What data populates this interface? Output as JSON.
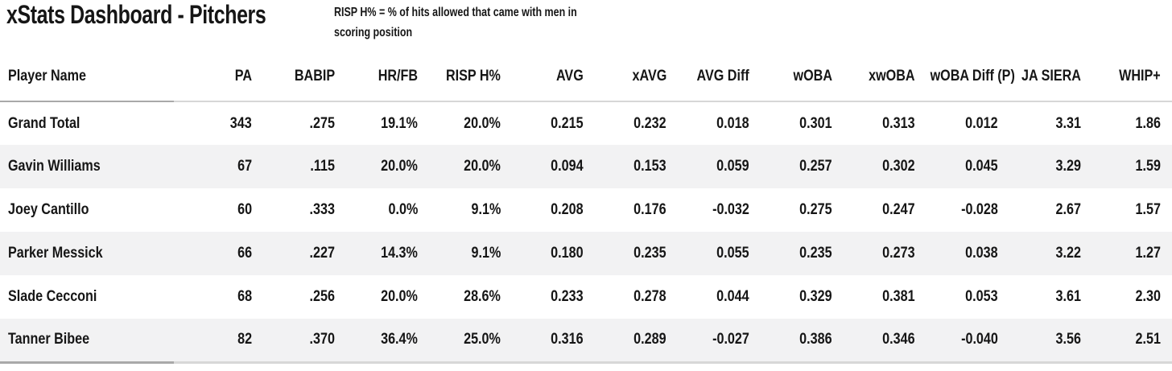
{
  "header": {
    "title": "xStats Dashboard - Pitchers",
    "note": "RISP H% = % of hits allowed that came with men in scoring position"
  },
  "chart_data": {
    "type": "table",
    "title": "xStats Dashboard - Pitchers",
    "note": "RISP H% = % of hits allowed that came with men in scoring position",
    "columns": [
      "Player Name",
      "PA",
      "BABIP",
      "HR/FB",
      "RISP H%",
      "AVG",
      "xAVG",
      "AVG Diff",
      "wOBA",
      "xwOBA",
      "wOBA Diff (P)",
      "JA SIERA",
      "WHIP+"
    ],
    "rows": [
      [
        "Grand Total",
        "343",
        ".275",
        "19.1%",
        "20.0%",
        "0.215",
        "0.232",
        "0.018",
        "0.301",
        "0.313",
        "0.012",
        "3.31",
        "1.86"
      ],
      [
        "Gavin Williams",
        "67",
        ".115",
        "20.0%",
        "20.0%",
        "0.094",
        "0.153",
        "0.059",
        "0.257",
        "0.302",
        "0.045",
        "3.29",
        "1.59"
      ],
      [
        "Joey Cantillo",
        "60",
        ".333",
        "0.0%",
        "9.1%",
        "0.208",
        "0.176",
        "-0.032",
        "0.275",
        "0.247",
        "-0.028",
        "2.67",
        "1.57"
      ],
      [
        "Parker Messick",
        "66",
        ".227",
        "14.3%",
        "9.1%",
        "0.180",
        "0.235",
        "0.055",
        "0.235",
        "0.273",
        "0.038",
        "3.22",
        "1.27"
      ],
      [
        "Slade Cecconi",
        "68",
        ".256",
        "20.0%",
        "28.6%",
        "0.233",
        "0.278",
        "0.044",
        "0.329",
        "0.381",
        "0.053",
        "3.61",
        "2.30"
      ],
      [
        "Tanner Bibee",
        "82",
        ".370",
        "36.4%",
        "25.0%",
        "0.316",
        "0.289",
        "-0.027",
        "0.386",
        "0.346",
        "-0.040",
        "3.56",
        "2.51"
      ]
    ]
  },
  "colors": {
    "text": "#161616",
    "background": "#ffffff",
    "row_alt_background": "#f2f2f3",
    "divider_strong": "#a9a9a9",
    "divider_light": "#d7d7d7"
  }
}
